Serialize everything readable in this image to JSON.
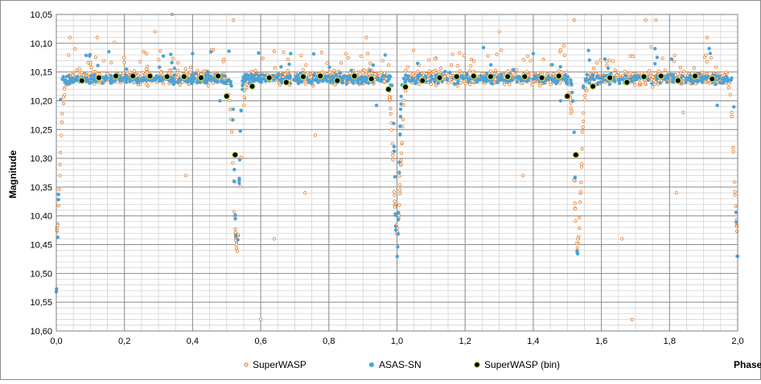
{
  "chart_data": {
    "type": "scatter",
    "title": "",
    "xlabel": "Phase",
    "ylabel": "Magnitude",
    "xlim": [
      0.0,
      2.0
    ],
    "ylim": [
      10.05,
      10.6
    ],
    "y_inverted": true,
    "decimal_comma": true,
    "grid": true,
    "x_major_step": 0.2,
    "x_minor_step": 0.05,
    "y_major_step": 0.05,
    "y_minor_step": 0.01,
    "x_tick_labels": [
      "0,0",
      "0,2",
      "0,4",
      "0,6",
      "0,8",
      "1,0",
      "1,2",
      "1,4",
      "1,6",
      "1,8",
      "2,0"
    ],
    "y_tick_labels": [
      "10,05",
      "10,10",
      "10,15",
      "10,20",
      "10,25",
      "10,30",
      "10,35",
      "10,40",
      "10,45",
      "10,50",
      "10,55",
      "10,60"
    ],
    "legend_position": "bottom",
    "series": [
      {
        "name": "SuperWASP",
        "style": "ring",
        "color": "#E8853A",
        "baseline_mag": 10.16,
        "baseline_scatter": 0.012,
        "eclipses": [
          {
            "center": 0.53,
            "depth_mag": 10.45,
            "width": 0.022
          },
          {
            "center": 1.0,
            "depth_mag": 10.43,
            "width": 0.022
          },
          {
            "center": 1.53,
            "depth_mag": 10.45,
            "width": 0.022
          },
          {
            "center": 0.0,
            "depth_mag": 10.43,
            "width": 0.022
          },
          {
            "center": 2.0,
            "depth_mag": 10.43,
            "width": 0.022
          }
        ],
        "outliers": [
          {
            "x": 0.34,
            "y": 10.05
          },
          {
            "x": 0.12,
            "y": 10.09
          },
          {
            "x": 0.29,
            "y": 10.08
          },
          {
            "x": 0.38,
            "y": 10.33
          },
          {
            "x": 0.6,
            "y": 10.58
          },
          {
            "x": 0.64,
            "y": 10.44
          },
          {
            "x": 0.73,
            "y": 10.36
          },
          {
            "x": 0.76,
            "y": 10.26
          },
          {
            "x": 0.91,
            "y": 10.09
          },
          {
            "x": 1.3,
            "y": 10.08
          },
          {
            "x": 1.37,
            "y": 10.33
          },
          {
            "x": 1.66,
            "y": 10.44
          },
          {
            "x": 1.69,
            "y": 10.58
          },
          {
            "x": 1.73,
            "y": 10.06
          },
          {
            "x": 1.76,
            "y": 10.06
          },
          {
            "x": 1.82,
            "y": 10.36
          },
          {
            "x": 1.91,
            "y": 10.09
          },
          {
            "x": 0.04,
            "y": 10.09
          },
          {
            "x": 0.52,
            "y": 10.06
          },
          {
            "x": 1.52,
            "y": 10.06
          },
          {
            "x": 1.84,
            "y": 10.22
          }
        ]
      },
      {
        "name": "ASAS-SN",
        "style": "dot",
        "color": "#4BA3D6",
        "baseline_mag": 10.162,
        "baseline_scatter": 0.008,
        "eclipses": [
          {
            "center": 0.53,
            "depth_mag": 10.465,
            "width": 0.014
          },
          {
            "center": 1.53,
            "depth_mag": 10.465,
            "width": 0.014
          },
          {
            "center": 1.0,
            "depth_mag": 10.475,
            "width": 0.012
          },
          {
            "center": 0.0,
            "depth_mag": 10.535,
            "width": 0.012
          },
          {
            "center": 2.0,
            "depth_mag": 10.475,
            "width": 0.012
          }
        ],
        "outliers": [
          {
            "x": 0.4,
            "y": 10.118
          },
          {
            "x": 1.4,
            "y": 10.118
          },
          {
            "x": 0.48,
            "y": 10.2
          },
          {
            "x": 0.94,
            "y": 10.208
          },
          {
            "x": 1.48,
            "y": 10.2
          },
          {
            "x": 1.94,
            "y": 10.208
          },
          {
            "x": 0.0,
            "y": 10.532
          },
          {
            "x": 2.0,
            "y": 10.47
          }
        ]
      },
      {
        "name": "SuperWASP (bin)",
        "style": "filled",
        "color": "#000000",
        "ring_color": "#C8E060",
        "points": [
          {
            "x": 0.075,
            "y": 10.165
          },
          {
            "x": 0.125,
            "y": 10.16
          },
          {
            "x": 0.175,
            "y": 10.157
          },
          {
            "x": 0.225,
            "y": 10.157
          },
          {
            "x": 0.275,
            "y": 10.157
          },
          {
            "x": 0.325,
            "y": 10.158
          },
          {
            "x": 0.375,
            "y": 10.158
          },
          {
            "x": 0.425,
            "y": 10.16
          },
          {
            "x": 0.475,
            "y": 10.157
          },
          {
            "x": 0.5,
            "y": 10.192
          },
          {
            "x": 0.525,
            "y": 10.294
          },
          {
            "x": 0.575,
            "y": 10.175
          },
          {
            "x": 0.625,
            "y": 10.16
          },
          {
            "x": 0.675,
            "y": 10.168
          },
          {
            "x": 0.725,
            "y": 10.158
          },
          {
            "x": 0.775,
            "y": 10.157
          },
          {
            "x": 0.825,
            "y": 10.165
          },
          {
            "x": 0.875,
            "y": 10.157
          },
          {
            "x": 0.925,
            "y": 10.162
          },
          {
            "x": 0.975,
            "y": 10.18
          },
          {
            "x": 1.025,
            "y": 10.176
          },
          {
            "x": 1.075,
            "y": 10.165
          },
          {
            "x": 1.125,
            "y": 10.16
          },
          {
            "x": 1.175,
            "y": 10.158
          },
          {
            "x": 1.225,
            "y": 10.157
          },
          {
            "x": 1.275,
            "y": 10.158
          },
          {
            "x": 1.325,
            "y": 10.158
          },
          {
            "x": 1.375,
            "y": 10.158
          },
          {
            "x": 1.425,
            "y": 10.16
          },
          {
            "x": 1.475,
            "y": 10.157
          },
          {
            "x": 1.5,
            "y": 10.192
          },
          {
            "x": 1.525,
            "y": 10.294
          },
          {
            "x": 1.575,
            "y": 10.175
          },
          {
            "x": 1.625,
            "y": 10.16
          },
          {
            "x": 1.675,
            "y": 10.168
          },
          {
            "x": 1.725,
            "y": 10.158
          },
          {
            "x": 1.775,
            "y": 10.157
          },
          {
            "x": 1.825,
            "y": 10.165
          },
          {
            "x": 1.875,
            "y": 10.157
          },
          {
            "x": 1.925,
            "y": 10.162
          }
        ]
      }
    ]
  },
  "legend": {
    "superwasp_label": "SuperWASP",
    "asassn_label": "ASAS-SN",
    "superwasp_bin_label": "SuperWASP (bin)"
  },
  "axes": {
    "x_title": "Phase",
    "y_title": "Magnitude"
  }
}
